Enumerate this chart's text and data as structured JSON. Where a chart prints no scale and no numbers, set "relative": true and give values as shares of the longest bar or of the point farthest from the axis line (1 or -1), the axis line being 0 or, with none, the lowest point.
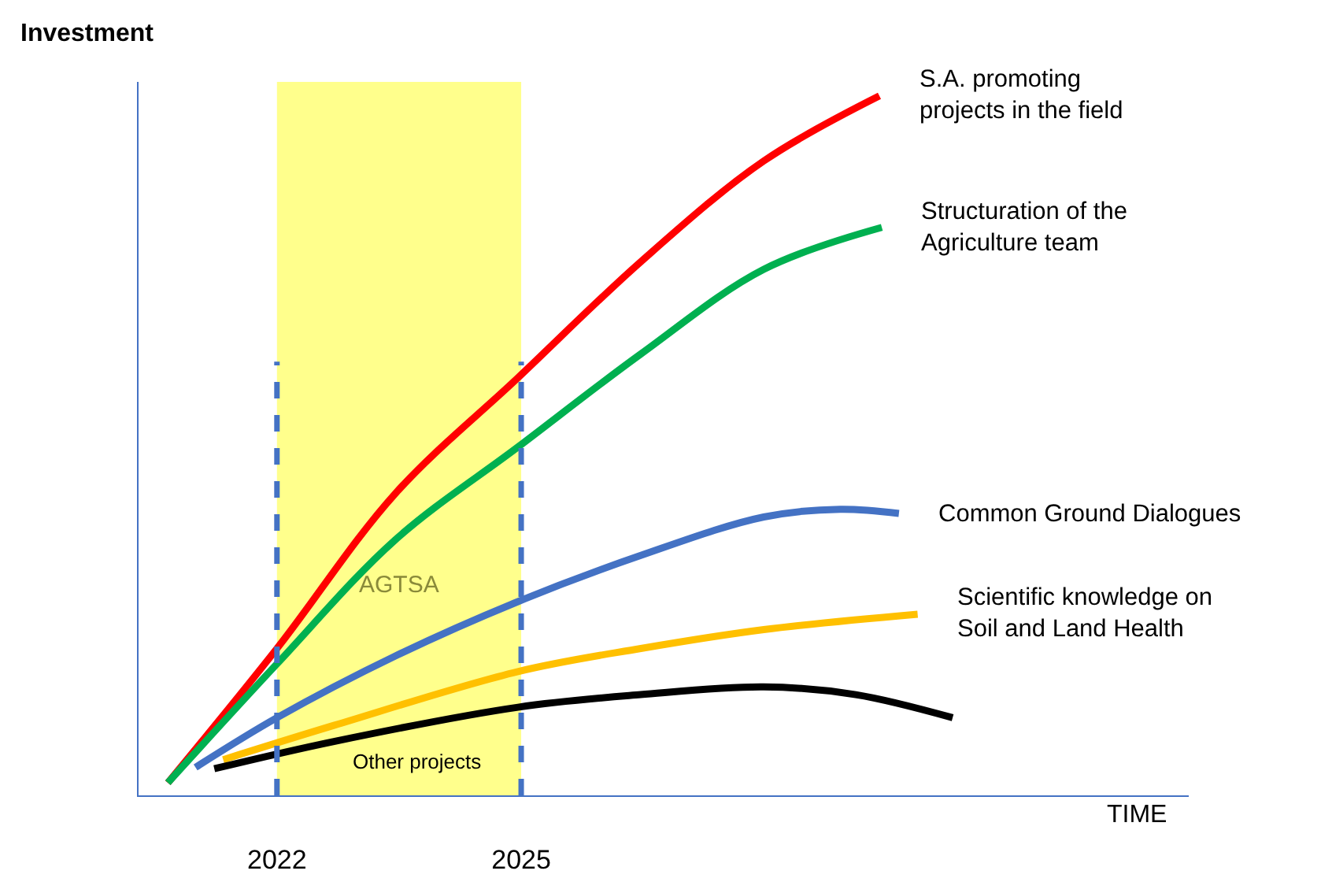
{
  "chart_data": {
    "type": "line",
    "relative": true,
    "ylabel": "Investment",
    "xlabel": "TIME",
    "xlim": [
      2020.3,
      2033.2
    ],
    "xticks": [
      2022,
      2025
    ],
    "grid": false,
    "legend": false,
    "marker": "none",
    "line_style": "solid",
    "series": [
      {
        "name": "S.A. promoting\nprojects in the field",
        "color": "#ff0000",
        "x": [
          2020.66,
          2022,
          2023.45,
          2024.96,
          2026.47,
          2027.98,
          2029.4
        ],
        "values": [
          0.018,
          0.21,
          0.431,
          0.597,
          0.763,
          0.907,
          1
        ]
      },
      {
        "name": "Structuration of the\nAgriculture team",
        "color": "#00b050",
        "x": [
          2020.66,
          2022,
          2023.45,
          2024.96,
          2026.47,
          2027.98,
          2029.43
        ],
        "values": [
          0.018,
          0.188,
          0.365,
          0.498,
          0.631,
          0.752,
          0.812
        ]
      },
      {
        "name": "Common Ground Dialogues",
        "color": "#4472c4",
        "x": [
          2021.0,
          2022,
          2023.45,
          2024.96,
          2026.47,
          2027.98,
          2028.92,
          2029.64
        ],
        "values": [
          0.04,
          0.111,
          0.199,
          0.277,
          0.343,
          0.398,
          0.409,
          0.403
        ]
      },
      {
        "name": "Scientific knowledge on\nSoil and Land Health",
        "color": "#ffc000",
        "x": [
          2021.34,
          2022.7,
          2024.96,
          2026.47,
          2027.98,
          2029.87
        ],
        "values": [
          0.051,
          0.1,
          0.177,
          0.21,
          0.237,
          0.259
        ]
      },
      {
        "name": "Other projects",
        "color": "#000000",
        "x": [
          2021.23,
          2022.7,
          2024.96,
          2026.47,
          2027.98,
          2029.11,
          2030.3
        ],
        "values": [
          0.038,
          0.077,
          0.126,
          0.144,
          0.155,
          0.144,
          0.111
        ]
      }
    ],
    "ref_lines": [
      {
        "axis": "x",
        "value": 2022,
        "color": "#4472c4",
        "line_style": "dashed"
      },
      {
        "axis": "x",
        "value": 2025,
        "color": "#4472c4",
        "line_style": "dashed"
      }
    ],
    "bands": [
      {
        "axis": "x",
        "from": 2022,
        "to": 2025,
        "label": "AGTSA",
        "color": "#ffff00"
      }
    ]
  }
}
